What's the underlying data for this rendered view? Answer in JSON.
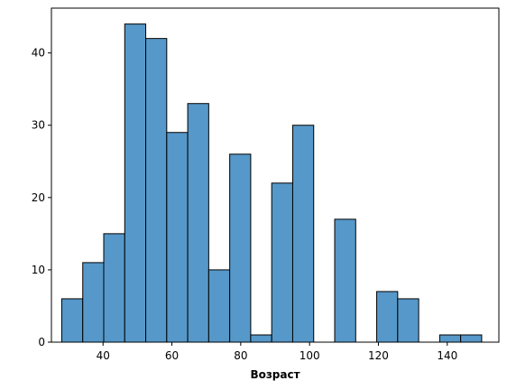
{
  "chart_data": {
    "type": "bar",
    "title": "",
    "xlabel": "Возраст",
    "ylabel": "",
    "xlim": [
      25,
      155
    ],
    "ylim": [
      0,
      46.2
    ],
    "xticks": [
      40,
      60,
      80,
      100,
      120,
      140
    ],
    "yticks": [
      0,
      10,
      20,
      30,
      40
    ],
    "bar_color": "#5698c9",
    "edge_color": "#000000",
    "bins": [
      {
        "x0": 28.0,
        "x1": 34.1,
        "count": 6
      },
      {
        "x0": 34.1,
        "x1": 40.2,
        "count": 11
      },
      {
        "x0": 40.2,
        "x1": 46.3,
        "count": 15
      },
      {
        "x0": 46.3,
        "x1": 52.4,
        "count": 44
      },
      {
        "x0": 52.4,
        "x1": 58.5,
        "count": 42
      },
      {
        "x0": 58.5,
        "x1": 64.6,
        "count": 29
      },
      {
        "x0": 64.6,
        "x1": 70.7,
        "count": 33
      },
      {
        "x0": 70.7,
        "x1": 76.8,
        "count": 10
      },
      {
        "x0": 76.8,
        "x1": 82.9,
        "count": 26
      },
      {
        "x0": 82.9,
        "x1": 89.0,
        "count": 1
      },
      {
        "x0": 89.0,
        "x1": 95.1,
        "count": 22
      },
      {
        "x0": 95.1,
        "x1": 101.2,
        "count": 30
      },
      {
        "x0": 101.2,
        "x1": 107.3,
        "count": 0
      },
      {
        "x0": 107.3,
        "x1": 113.4,
        "count": 17
      },
      {
        "x0": 113.4,
        "x1": 119.5,
        "count": 0
      },
      {
        "x0": 119.5,
        "x1": 125.6,
        "count": 7
      },
      {
        "x0": 125.6,
        "x1": 131.7,
        "count": 6
      },
      {
        "x0": 131.7,
        "x1": 137.8,
        "count": 0
      },
      {
        "x0": 137.8,
        "x1": 143.9,
        "count": 1
      },
      {
        "x0": 143.9,
        "x1": 150.0,
        "count": 1
      }
    ]
  }
}
